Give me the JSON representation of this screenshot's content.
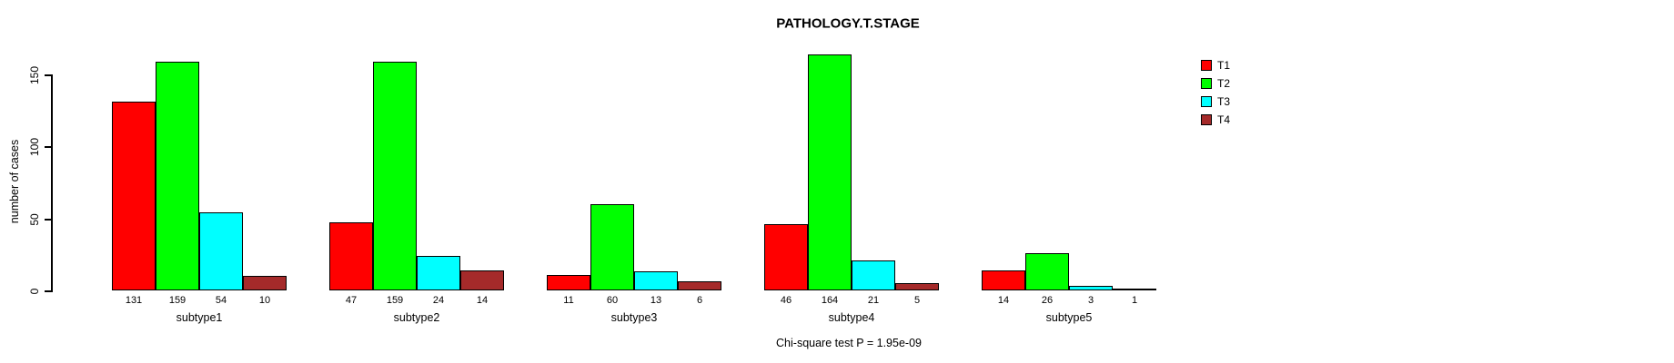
{
  "title": "PATHOLOGY.T.STAGE",
  "chart_data": {
    "type": "bar",
    "grouped": true,
    "title": "PATHOLOGY.T.STAGE",
    "ylabel": "number of cases",
    "xlabel": "",
    "categories": [
      "subtype1",
      "subtype2",
      "subtype3",
      "subtype4",
      "subtype5"
    ],
    "series": [
      {
        "name": "T1",
        "color": "#FF0000",
        "values": [
          131,
          47,
          11,
          46,
          14
        ]
      },
      {
        "name": "T2",
        "color": "#00FF00",
        "values": [
          159,
          159,
          60,
          164,
          26
        ]
      },
      {
        "name": "T3",
        "color": "#00FFFF",
        "values": [
          54,
          24,
          13,
          21,
          3
        ]
      },
      {
        "name": "T4",
        "color": "#A52A2A",
        "values": [
          10,
          14,
          6,
          5,
          1
        ]
      }
    ],
    "yticks": [
      0,
      50,
      100,
      150
    ],
    "ylim": [
      0,
      150
    ],
    "grid": false,
    "legend_position": "right",
    "bar_value_labels": true,
    "annotation": "Chi-square test P = 1.95e-09"
  }
}
